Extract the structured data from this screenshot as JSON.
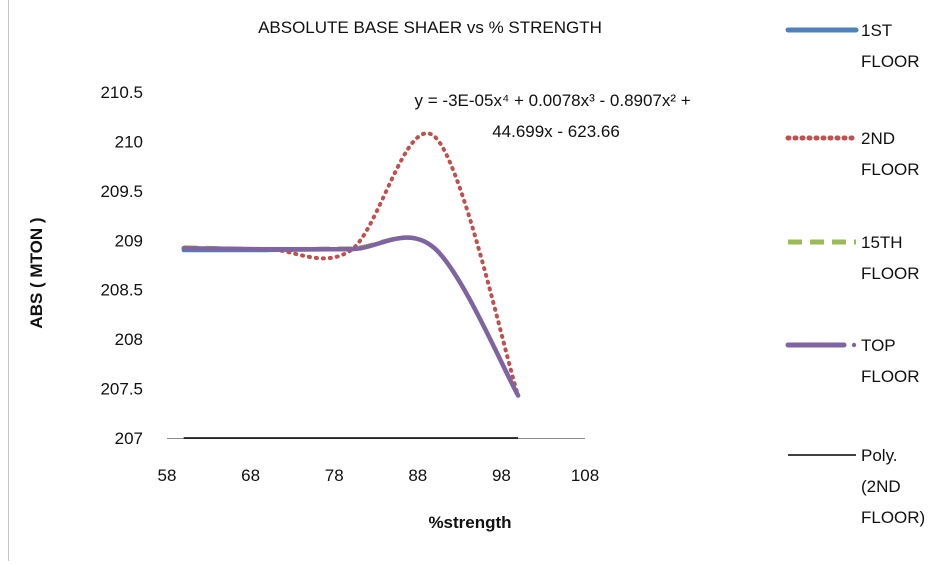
{
  "chart_data": {
    "type": "line",
    "title": "ABSOLUTE BASE SHAER vs % STRENGTH",
    "xlabel": "%strength",
    "ylabel": "ABS ( MTON )",
    "xlim": [
      58,
      108
    ],
    "ylim": [
      207,
      210.5
    ],
    "xticks": [
      "58",
      "68",
      "78",
      "88",
      "98",
      "108"
    ],
    "yticks": [
      "207",
      "207.5",
      "208",
      "208.5",
      "209",
      "209.5",
      "210",
      "210.5"
    ],
    "grid": false,
    "legend_placement": "right",
    "x": [
      60,
      70,
      80,
      90,
      100
    ],
    "series": [
      {
        "name": "1ST FLOOR",
        "color": "#4f81bd",
        "style": "solid",
        "values": [
          208.9,
          208.9,
          208.91,
          208.92,
          207.43
        ]
      },
      {
        "name": "2ND FLOOR",
        "color": "#c0504d",
        "style": "dotted",
        "values": [
          208.92,
          208.91,
          208.9,
          210.05,
          207.43
        ]
      },
      {
        "name": "15TH FLOOR",
        "color": "#9bbb59",
        "style": "dashed",
        "values": [
          208.93,
          208.91,
          208.92,
          208.92,
          207.43
        ]
      },
      {
        "name": "TOP FLOOR",
        "color": "#8064a2",
        "style": "dash-dot",
        "values": [
          208.92,
          208.91,
          208.91,
          208.92,
          207.43
        ]
      }
    ],
    "trendline": {
      "name": "Poly. (2ND FLOOR)",
      "color": "#000000",
      "equation_line1": "y = -3E-05x⁴ + 0.0078x³ - 0.8907x² +",
      "equation_line2": "44.699x - 623.66"
    }
  }
}
